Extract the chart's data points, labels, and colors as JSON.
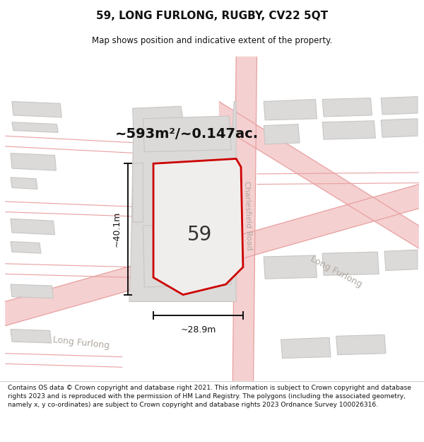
{
  "title": "59, LONG FURLONG, RUGBY, CV22 5QT",
  "subtitle": "Map shows position and indicative extent of the property.",
  "area_label": "~593m²/~0.147ac.",
  "plot_number": "59",
  "width_label": "~28.9m",
  "height_label": "~40.1m",
  "footer": "Contains OS data © Crown copyright and database right 2021. This information is subject to Crown copyright and database rights 2023 and is reproduced with the permission of HM Land Registry. The polygons (including the associated geometry, namely x, y co-ordinates) are subject to Crown copyright and database rights 2023 Ordnance Survey 100026316.",
  "map_bg": "#f2f1ef",
  "road_fill": "#f5d0d0",
  "road_edge": "#e8a0a0",
  "building_fill": "#dcdad8",
  "building_edge": "#c8c6c4",
  "plot_fill": "#f0eeec",
  "plot_stroke": "#cc0000",
  "road_label_color": "#b0a8a0",
  "dim_color": "#111111",
  "title_color": "#111111",
  "area_label_color": "#111111",
  "footer_color": "#111111",
  "white": "#ffffff"
}
